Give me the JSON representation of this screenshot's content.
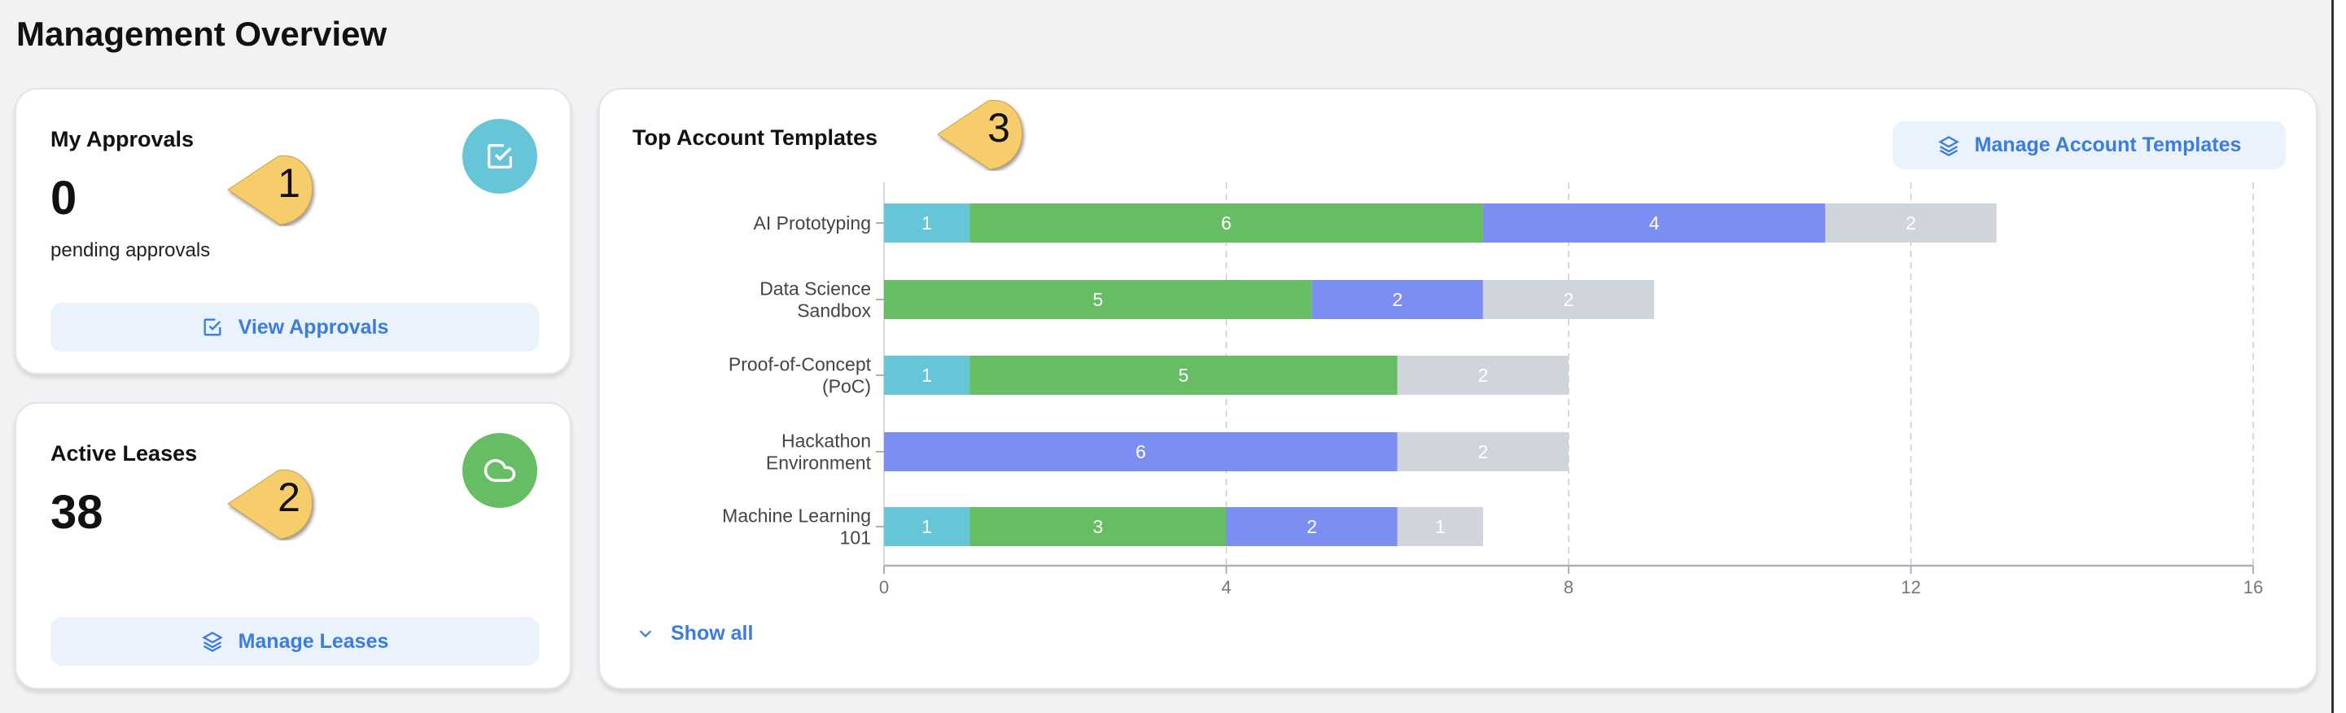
{
  "page_title": "Management Overview",
  "approvals": {
    "title": "My Approvals",
    "count": "0",
    "subtitle": "pending approvals",
    "button": "View Approvals",
    "color": "#67c5d8"
  },
  "leases": {
    "title": "Active Leases",
    "count": "38",
    "button": "Manage Leases",
    "color": "#66bd63"
  },
  "templates": {
    "title": "Top Account Templates",
    "button": "Manage Account Templates",
    "show_all": "Show all"
  },
  "callouts": [
    "1",
    "2",
    "3"
  ],
  "chart_data": {
    "type": "bar",
    "orientation": "horizontal",
    "stacked": true,
    "title": "Top Account Templates",
    "categories": [
      [
        "AI Prototyping"
      ],
      [
        "Data Science",
        "Sandbox"
      ],
      [
        "Proof-of-Concept",
        "(PoC)"
      ],
      [
        "Hackathon",
        "Environment"
      ],
      [
        "Machine Learning",
        "101"
      ]
    ],
    "series": [
      {
        "name": "series-1",
        "color": "#67c5d8",
        "values": [
          1,
          0,
          1,
          0,
          1
        ]
      },
      {
        "name": "series-2",
        "color": "#66bd63",
        "values": [
          6,
          5,
          5,
          0,
          3
        ]
      },
      {
        "name": "series-3",
        "color": "#7b8ef2",
        "values": [
          4,
          2,
          0,
          6,
          2
        ]
      },
      {
        "name": "series-4",
        "color": "#d0d4db",
        "values": [
          2,
          2,
          2,
          2,
          1
        ]
      }
    ],
    "xlim": [
      0,
      16
    ],
    "xticks": [
      0,
      4,
      8,
      12,
      16
    ],
    "grid": true
  }
}
